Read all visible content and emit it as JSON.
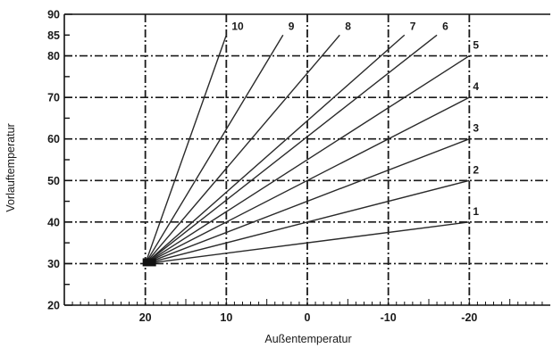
{
  "chart_data": {
    "type": "line",
    "xlabel": "Außentemperatur",
    "ylabel": "Vorlauftemperatur",
    "xlim": [
      30,
      -30
    ],
    "ylim": [
      20,
      90
    ],
    "x_ticks": [
      20,
      10,
      0,
      -10,
      -20
    ],
    "x_tick_labels": [
      "20",
      "10",
      "0",
      "-10",
      "-20"
    ],
    "y_ticks": [
      20,
      30,
      40,
      50,
      60,
      70,
      80,
      85,
      90
    ],
    "y_tick_labels": [
      "20",
      "30",
      "40",
      "50",
      "60",
      "70",
      "80",
      "85",
      "90"
    ],
    "grid": "dashed",
    "series": [
      {
        "name": "1",
        "x": [
          20,
          -20
        ],
        "y": [
          30,
          40
        ]
      },
      {
        "name": "2",
        "x": [
          20,
          -20
        ],
        "y": [
          30,
          50
        ]
      },
      {
        "name": "3",
        "x": [
          20,
          -20
        ],
        "y": [
          30,
          60
        ]
      },
      {
        "name": "4",
        "x": [
          20,
          -20
        ],
        "y": [
          30,
          70
        ]
      },
      {
        "name": "5",
        "x": [
          20,
          -20
        ],
        "y": [
          30,
          80
        ]
      },
      {
        "name": "6",
        "x": [
          20,
          -16
        ],
        "y": [
          30,
          85
        ]
      },
      {
        "name": "7",
        "x": [
          20,
          -12
        ],
        "y": [
          30,
          85
        ]
      },
      {
        "name": "8",
        "x": [
          20,
          -4
        ],
        "y": [
          30,
          85
        ]
      },
      {
        "name": "9",
        "x": [
          20,
          3
        ],
        "y": [
          30,
          85
        ]
      },
      {
        "name": "10",
        "x": [
          20,
          10
        ],
        "y": [
          30,
          85
        ]
      }
    ]
  }
}
